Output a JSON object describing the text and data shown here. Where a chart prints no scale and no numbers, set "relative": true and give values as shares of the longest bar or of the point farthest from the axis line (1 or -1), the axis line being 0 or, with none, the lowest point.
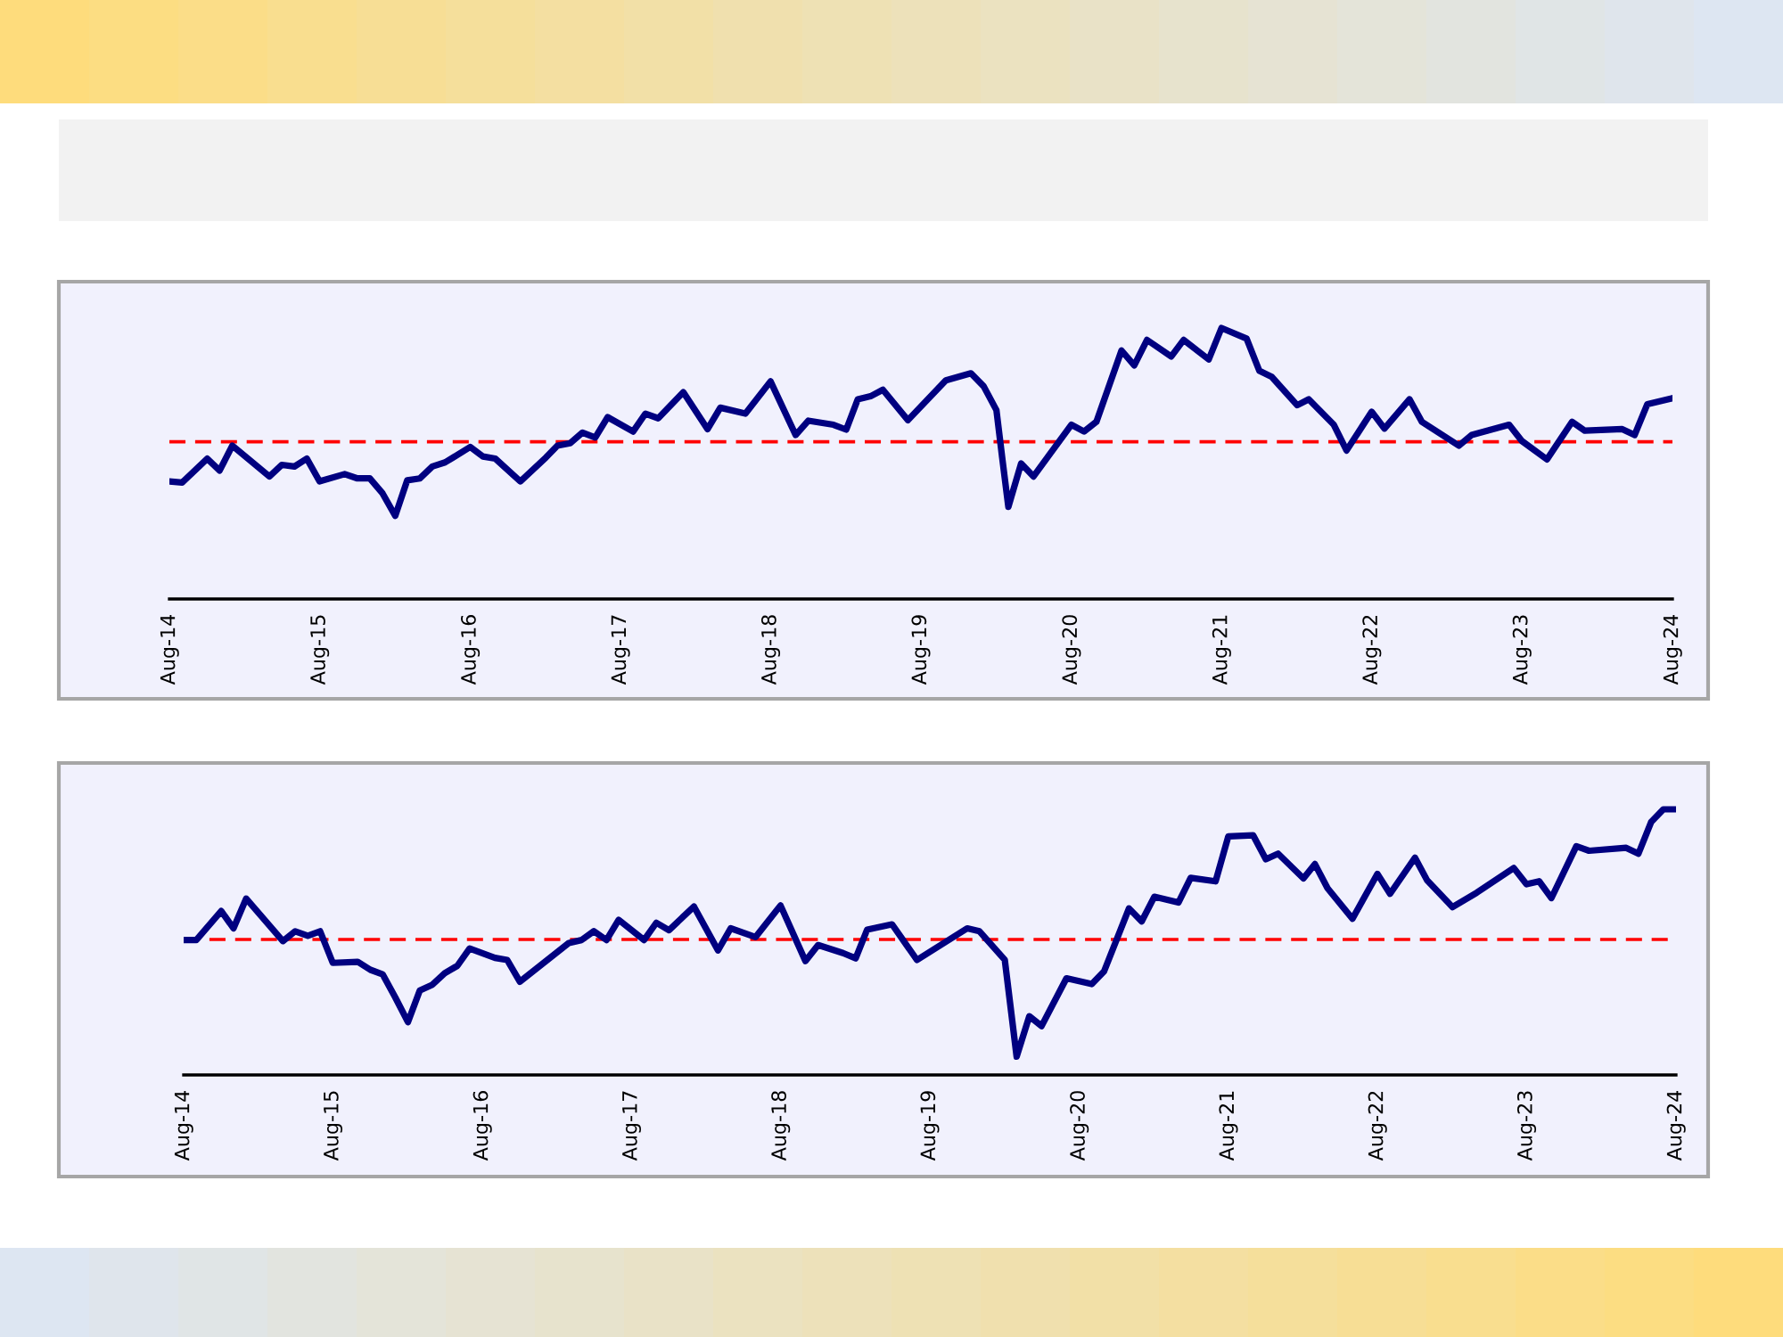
{
  "chart_data": [
    {
      "type": "line",
      "relative": true,
      "tick_labels": "x",
      "line_style": "solid",
      "x": [
        "2014-08",
        "2014-09",
        "2014-11",
        "2014-12",
        "2015-01",
        "2015-04",
        "2015-05",
        "2015-06",
        "2015-07",
        "2015-08",
        "2015-10",
        "2015-11",
        "2015-12",
        "2016-01",
        "2016-02",
        "2016-03",
        "2016-04",
        "2016-05",
        "2016-06",
        "2016-08",
        "2016-09",
        "2016-10",
        "2016-12",
        "2017-02",
        "2017-03",
        "2017-04",
        "2017-05",
        "2017-06",
        "2017-07",
        "2017-09",
        "2017-10",
        "2017-11",
        "2018-01",
        "2018-03",
        "2018-04",
        "2018-06",
        "2018-08",
        "2018-10",
        "2018-11",
        "2019-01",
        "2019-02",
        "2019-03",
        "2019-04",
        "2019-05",
        "2019-07",
        "2019-10",
        "2019-12",
        "2020-01",
        "2020-02",
        "2020-02-15",
        "2020-03",
        "2020-04",
        "2020-05",
        "2020-08",
        "2020-09",
        "2020-10",
        "2020-12",
        "2021-01",
        "2021-02",
        "2021-04",
        "2021-05",
        "2021-07",
        "2021-08",
        "2021-10",
        "2021-11",
        "2021-12",
        "2022-02",
        "2022-03",
        "2022-05",
        "2022-06",
        "2022-08",
        "2022-09",
        "2022-11",
        "2022-12",
        "2023-03",
        "2023-04",
        "2023-07",
        "2023-08",
        "2023-10",
        "2023-12",
        "2024-01",
        "2024-04",
        "2024-05",
        "2024-06",
        "2024-08"
      ],
      "series": [
        {
          "color": "#000080",
          "values": [
            0.434,
            0.43,
            0.518,
            0.474,
            0.566,
            0.452,
            0.495,
            0.489,
            0.518,
            0.434,
            0.461,
            0.445,
            0.445,
            0.39,
            0.307,
            0.438,
            0.445,
            0.489,
            0.504,
            0.561,
            0.526,
            0.518,
            0.434,
            0.522,
            0.566,
            0.575,
            0.614,
            0.596,
            0.671,
            0.618,
            0.684,
            0.667,
            0.763,
            0.627,
            0.706,
            0.684,
            0.803,
            0.605,
            0.658,
            0.643,
            0.625,
            0.737,
            0.748,
            0.772,
            0.66,
            0.807,
            0.833,
            0.785,
            0.697,
            0.522,
            0.34,
            0.5,
            0.452,
            0.643,
            0.618,
            0.654,
            0.917,
            0.862,
            0.956,
            0.895,
            0.956,
            0.884,
            1.0,
            0.961,
            0.842,
            0.82,
            0.715,
            0.737,
            0.643,
            0.548,
            0.691,
            0.629,
            0.737,
            0.654,
            0.566,
            0.605,
            0.643,
            0.583,
            0.515,
            0.654,
            0.621,
            0.627,
            0.605,
            0.719,
            0.741
          ]
        }
      ],
      "xlim": [
        "2014-08",
        "2024-08"
      ],
      "xticks": [
        {
          "value": "2014-08",
          "label": "Aug-14"
        },
        {
          "value": "2015-08",
          "label": "Aug-15"
        },
        {
          "value": "2016-08",
          "label": "Aug-16"
        },
        {
          "value": "2017-08",
          "label": "Aug-17"
        },
        {
          "value": "2018-08",
          "label": "Aug-18"
        },
        {
          "value": "2019-08",
          "label": "Aug-19"
        },
        {
          "value": "2020-08",
          "label": "Aug-20"
        },
        {
          "value": "2021-08",
          "label": "Aug-21"
        },
        {
          "value": "2022-08",
          "label": "Aug-22"
        },
        {
          "value": "2023-08",
          "label": "Aug-23"
        },
        {
          "value": "2024-08",
          "label": "Aug-24"
        }
      ],
      "ref_lines": [
        {
          "axis": "y",
          "value": 0.58,
          "color": "#ff0000",
          "line_style": "dashed"
        }
      ]
    },
    {
      "type": "line",
      "relative": true,
      "tick_labels": "x",
      "line_style": "solid",
      "x": [
        "2014-08",
        "2014-09",
        "2014-11",
        "2014-12",
        "2015-01",
        "2015-04",
        "2015-05",
        "2015-06",
        "2015-07",
        "2015-08",
        "2015-10",
        "2015-11",
        "2015-12",
        "2016-01",
        "2016-02",
        "2016-03",
        "2016-04",
        "2016-05",
        "2016-06",
        "2016-07",
        "2016-09",
        "2016-10",
        "2016-11",
        "2017-03",
        "2017-04",
        "2017-05",
        "2017-06",
        "2017-07",
        "2017-09",
        "2017-10",
        "2017-11",
        "2018-01",
        "2018-03",
        "2018-04",
        "2018-06",
        "2018-08",
        "2018-10",
        "2018-11",
        "2019-01",
        "2019-02",
        "2019-03",
        "2019-05",
        "2019-07",
        "2019-11",
        "2019-12",
        "2020-02",
        "2020-03",
        "2020-04",
        "2020-05",
        "2020-07",
        "2020-09",
        "2020-10",
        "2020-12",
        "2021-01",
        "2021-02",
        "2021-04",
        "2021-05",
        "2021-07",
        "2021-08",
        "2021-10",
        "2021-11",
        "2021-12",
        "2022-02",
        "2022-03",
        "2022-04",
        "2022-06",
        "2022-08",
        "2022-09",
        "2022-11",
        "2022-12",
        "2023-02",
        "2023-04",
        "2023-07",
        "2023-08",
        "2023-09",
        "2023-10",
        "2023-12",
        "2024-01",
        "2024-04",
        "2024-05",
        "2024-06",
        "2024-07",
        "2024-08"
      ],
      "series": [
        {
          "color": "#000080",
          "values": [
            0.508,
            0.508,
            0.617,
            0.552,
            0.664,
            0.504,
            0.541,
            0.524,
            0.541,
            0.422,
            0.426,
            0.396,
            0.379,
            0.292,
            0.199,
            0.318,
            0.34,
            0.383,
            0.411,
            0.476,
            0.441,
            0.433,
            0.351,
            0.497,
            0.508,
            0.541,
            0.508,
            0.584,
            0.508,
            0.573,
            0.545,
            0.634,
            0.469,
            0.552,
            0.519,
            0.638,
            0.429,
            0.489,
            0.459,
            0.439,
            0.547,
            0.567,
            0.433,
            0.552,
            0.541,
            0.433,
            0.069,
            0.221,
            0.184,
            0.364,
            0.342,
            0.39,
            0.627,
            0.578,
            0.671,
            0.649,
            0.742,
            0.729,
            0.898,
            0.902,
            0.812,
            0.833,
            0.74,
            0.794,
            0.703,
            0.588,
            0.757,
            0.682,
            0.818,
            0.732,
            0.632,
            0.686,
            0.779,
            0.718,
            0.729,
            0.666,
            0.861,
            0.844,
            0.855,
            0.833,
            0.952,
            1.0,
            1.0
          ]
        }
      ],
      "xlim": [
        "2014-08",
        "2024-08"
      ],
      "xticks": [
        {
          "value": "2014-08",
          "label": "Aug-14"
        },
        {
          "value": "2015-08",
          "label": "Aug-15"
        },
        {
          "value": "2016-08",
          "label": "Aug-16"
        },
        {
          "value": "2017-08",
          "label": "Aug-17"
        },
        {
          "value": "2018-08",
          "label": "Aug-18"
        },
        {
          "value": "2019-08",
          "label": "Aug-19"
        },
        {
          "value": "2020-08",
          "label": "Aug-20"
        },
        {
          "value": "2021-08",
          "label": "Aug-21"
        },
        {
          "value": "2022-08",
          "label": "Aug-22"
        },
        {
          "value": "2023-08",
          "label": "Aug-23"
        },
        {
          "value": "2024-08",
          "label": "Aug-24"
        }
      ],
      "ref_lines": [
        {
          "axis": "y",
          "value": 0.51,
          "color": "#ff0000",
          "line_style": "dashed"
        }
      ]
    }
  ]
}
